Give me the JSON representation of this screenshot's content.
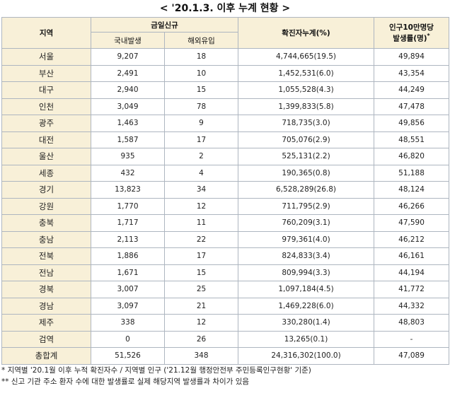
{
  "title": "< '20.1.3. 이후 누계 현황 >",
  "headers": {
    "region": "지역",
    "daily_new": "금일신규",
    "domestic": "국내발생",
    "overseas": "해외유입",
    "cumulative": "확진자누계(%)",
    "rate_line1": "인구10만명당",
    "rate_line2": "발생률(명)",
    "rate_mark": "*"
  },
  "rows": [
    {
      "region": "서울",
      "domestic": "9,207",
      "overseas": "18",
      "cumulative": "4,744,665(19.5)",
      "rate": "49,894"
    },
    {
      "region": "부산",
      "domestic": "2,491",
      "overseas": "10",
      "cumulative": "1,452,531(6.0)",
      "rate": "43,354"
    },
    {
      "region": "대구",
      "domestic": "2,940",
      "overseas": "15",
      "cumulative": "1,055,528(4.3)",
      "rate": "44,249"
    },
    {
      "region": "인천",
      "domestic": "3,049",
      "overseas": "78",
      "cumulative": "1,399,833(5.8)",
      "rate": "47,478"
    },
    {
      "region": "광주",
      "domestic": "1,463",
      "overseas": "9",
      "cumulative": "718,735(3.0)",
      "rate": "49,856"
    },
    {
      "region": "대전",
      "domestic": "1,587",
      "overseas": "17",
      "cumulative": "705,076(2.9)",
      "rate": "48,551"
    },
    {
      "region": "울산",
      "domestic": "935",
      "overseas": "2",
      "cumulative": "525,131(2.2)",
      "rate": "46,820"
    },
    {
      "region": "세종",
      "domestic": "432",
      "overseas": "4",
      "cumulative": "190,365(0.8)",
      "rate": "51,188"
    },
    {
      "region": "경기",
      "domestic": "13,823",
      "overseas": "34",
      "cumulative": "6,528,289(26.8)",
      "rate": "48,124"
    },
    {
      "region": "강원",
      "domestic": "1,770",
      "overseas": "12",
      "cumulative": "711,795(2.9)",
      "rate": "46,266"
    },
    {
      "region": "충북",
      "domestic": "1,717",
      "overseas": "11",
      "cumulative": "760,209(3.1)",
      "rate": "47,590"
    },
    {
      "region": "충남",
      "domestic": "2,113",
      "overseas": "22",
      "cumulative": "979,361(4.0)",
      "rate": "46,212"
    },
    {
      "region": "전북",
      "domestic": "1,886",
      "overseas": "17",
      "cumulative": "824,833(3.4)",
      "rate": "46,161"
    },
    {
      "region": "전남",
      "domestic": "1,671",
      "overseas": "15",
      "cumulative": "809,994(3.3)",
      "rate": "44,194"
    },
    {
      "region": "경북",
      "domestic": "3,007",
      "overseas": "25",
      "cumulative": "1,097,184(4.5)",
      "rate": "41,772"
    },
    {
      "region": "경남",
      "domestic": "3,097",
      "overseas": "21",
      "cumulative": "1,469,228(6.0)",
      "rate": "44,332"
    },
    {
      "region": "제주",
      "domestic": "338",
      "overseas": "12",
      "cumulative": "330,280(1.4)",
      "rate": "48,803"
    },
    {
      "region": "검역",
      "domestic": "0",
      "overseas": "26",
      "cumulative": "13,265(0.1)",
      "rate": "-"
    },
    {
      "region": "총합계",
      "domestic": "51,526",
      "overseas": "348",
      "cumulative": "24,316,302(100.0)",
      "rate": "47,089"
    }
  ],
  "notes": [
    "* 지역별 '20.1월 이후 누적 확진자수 / 지역별 인구 ('21.12월 행정안전부 주민등록인구현황' 기준)",
    "** 신고 기관 주소 환자 수에 대한 발생률로 실제 해당지역 발생률과 차이가 있음"
  ]
}
